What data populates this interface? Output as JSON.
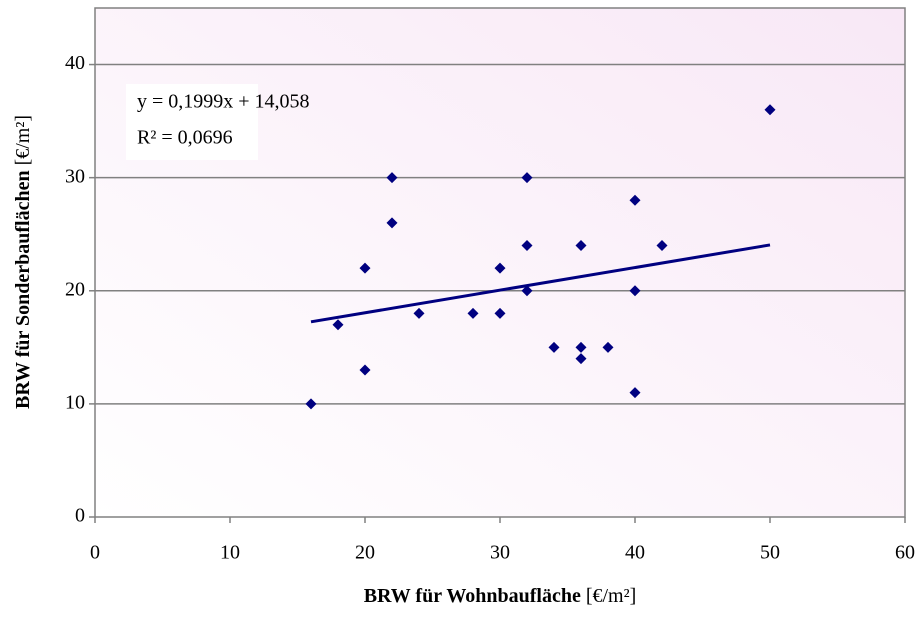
{
  "chart_data": {
    "type": "scatter",
    "xlabel": "BRW für Wohnbaufläche",
    "xlabel_unit": "[€/m²]",
    "ylabel": "BRW für Sonderbauflächen",
    "ylabel_unit": "[€/m²]",
    "x": [
      16,
      18,
      20,
      20,
      22,
      22,
      24,
      28,
      30,
      30,
      32,
      32,
      32,
      34,
      36,
      36,
      36,
      38,
      40,
      40,
      40,
      42,
      50
    ],
    "series": [
      {
        "color": "#000080",
        "values": [
          10,
          17,
          22,
          13,
          30,
          26,
          18,
          18,
          22,
          18,
          30,
          24,
          20,
          15,
          24,
          15,
          14,
          15,
          28,
          20,
          11,
          24,
          36
        ]
      }
    ],
    "trendline": {
      "equation": "y = 0,1999x + 14,058",
      "r2_label": "R² = 0,0696",
      "slope": 0.1999,
      "intercept": 14.058,
      "color": "#000080"
    },
    "xlim": [
      0,
      60
    ],
    "xticks": [
      0,
      10,
      20,
      30,
      40,
      50,
      60
    ],
    "ylim": [
      0,
      45
    ],
    "yticks": [
      0,
      10,
      20,
      30,
      40
    ],
    "grid": true
  }
}
